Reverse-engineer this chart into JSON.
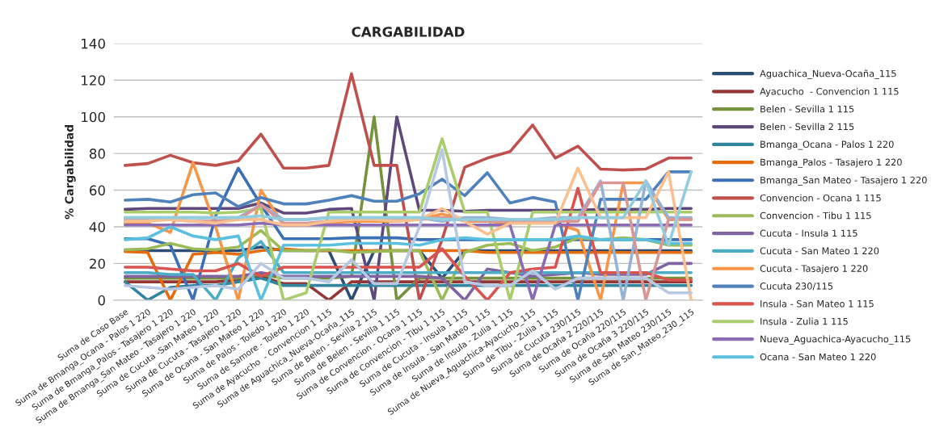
{
  "chart_data": {
    "type": "line",
    "title": "CARGABILIDAD",
    "ylabel": "% Cargabilidad",
    "categories": [
      "Suma de Caso Base",
      "Suma de Bmanga_Ocana - Palos 1 220",
      "Suma de Bmanga_Palos - Tasajero 1 220",
      "Suma de Bmanga_San Mateo - Tasajero 1 220",
      "Suma de Cucuta -San Mateo 1 220",
      "Suma de Cucuta - Tasajero 1 220",
      "Suma de Ocana - San Mateo 1 220",
      "Suma de Palos - Toledo 1 220",
      "Suma de Samore - Toledo 1 220",
      "Suma de Ayacucho  - Convencion 1 115",
      "Suma de Aguachica_Nueva-Ocaña_115",
      "Suma de Belen - Sevilla 2 115",
      "Suma de Belen - Sevilla 1 115",
      "Suma de Convencion - Ocana 1 115",
      "Suma de Convencion - Tibu 1 115",
      "Suma de Cucuta - Insula 1 115",
      "Suma de Insula - San Mateo 1 115",
      "Suma de Insula - Zulia 1 115",
      "Suma de Nueva_Aguachica-Ayacucho_115",
      "Suma de Tibu - Zulia 1 115",
      "Suma de Cucuta 230/115",
      "Suma de Ocaña 2 220/115",
      "Suma de Ocaña 220/115",
      "Suma de Ocaña 3 220/115",
      "Suma de San Mateo 230/115",
      "Suma de San_Mateo_230_115"
    ],
    "ylim": [
      0,
      140
    ],
    "yticks": [
      0,
      20,
      40,
      60,
      80,
      100,
      120,
      140
    ],
    "grid": "y",
    "legend": "right",
    "line_style": "solid",
    "marker": "none",
    "series": [
      {
        "name": "Aguachica_Nueva-Ocaña_115",
        "color": "#2c4d75",
        "values": [
          27,
          27,
          27,
          27,
          27,
          27,
          29,
          27,
          27,
          27,
          0,
          27,
          27,
          27,
          12,
          27,
          27,
          27,
          27,
          27,
          27,
          27,
          27,
          27,
          27,
          27
        ]
      },
      {
        "name": "Ayacucho  - Convencion 1 115",
        "color": "#943634",
        "values": [
          10,
          10,
          10,
          10,
          10,
          11,
          13,
          9,
          9,
          0,
          10,
          10,
          10,
          10,
          10,
          10,
          10,
          10,
          10,
          10,
          10,
          10,
          10,
          10,
          10,
          10
        ]
      },
      {
        "name": "Belen - Sevilla 1 115",
        "color": "#76923c",
        "values": [
          12,
          12,
          12,
          12,
          12,
          12,
          14,
          12,
          12,
          12,
          13,
          100,
          0,
          12,
          12,
          12,
          12,
          12,
          12,
          12,
          12,
          12,
          12,
          12,
          12,
          12
        ]
      },
      {
        "name": "Belen - Sevilla 2 115",
        "color": "#5f497a",
        "values": [
          49.5,
          50,
          50,
          50,
          50,
          50,
          53,
          47.5,
          47.5,
          49.5,
          50,
          0,
          100,
          49,
          49,
          48.5,
          49,
          49,
          49,
          49,
          49,
          49.5,
          49.5,
          49.5,
          50,
          50
        ]
      },
      {
        "name": "Bmanga_Ocana - Palos 1 220",
        "color": "#31859c",
        "values": [
          10,
          0,
          7,
          8,
          8,
          10,
          12,
          8,
          8,
          8,
          8,
          8,
          8,
          8,
          8,
          8,
          8,
          8,
          8,
          8,
          8,
          8,
          8,
          8,
          8,
          8
        ]
      },
      {
        "name": "Bmanga_Palos - Tasajero 1 220",
        "color": "#e46c0a",
        "values": [
          26.5,
          26,
          0,
          25,
          26,
          25,
          27,
          28,
          27,
          27,
          27,
          27,
          27,
          27,
          27,
          27,
          26,
          26,
          26,
          26,
          26,
          26,
          26,
          26,
          26,
          26
        ]
      },
      {
        "name": "Bmanga_San Mateo - Tasajero 1 220",
        "color": "#3b6fb6",
        "values": [
          33.5,
          33.5,
          30,
          0,
          46,
          72,
          52,
          33.5,
          33.5,
          33.5,
          34,
          34,
          34,
          33,
          33,
          33,
          33,
          33,
          33,
          33,
          33,
          33,
          33,
          33,
          33,
          33
        ]
      },
      {
        "name": "Convencion - Ocana 1 115",
        "color": "#c0504d",
        "values": [
          73.5,
          74.5,
          79,
          75,
          73.5,
          76,
          90.5,
          72,
          72,
          73.5,
          123.5,
          73.5,
          73.5,
          0,
          33,
          72.5,
          77.5,
          81,
          95.5,
          77.5,
          84,
          71.5,
          71,
          71.5,
          77.5,
          77.5
        ]
      },
      {
        "name": "Convencion - Tibu 1 115",
        "color": "#9bbb59",
        "values": [
          27.5,
          28,
          31,
          28,
          27.5,
          29,
          38,
          27,
          27,
          27.5,
          26,
          26.5,
          27,
          27,
          0,
          26,
          30,
          31,
          27,
          29,
          34,
          33,
          34,
          33,
          30,
          30
        ]
      },
      {
        "name": "Cucuta - Insula 1 115",
        "color": "#8064a2",
        "values": [
          13,
          13,
          13,
          13,
          13,
          13,
          15,
          13,
          13,
          13,
          13,
          13,
          13,
          13,
          12,
          0,
          17,
          15,
          13,
          14,
          15,
          14,
          14,
          14,
          20,
          20
        ]
      },
      {
        "name": "Cucuta - San Mateo 1 220",
        "color": "#4bacc6",
        "values": [
          15,
          15,
          14,
          14,
          0,
          23,
          32,
          15,
          15,
          15,
          15,
          15,
          15,
          15,
          15,
          15,
          15,
          15,
          15,
          15,
          15,
          15,
          15,
          15,
          15,
          15
        ]
      },
      {
        "name": "Cucuta - Tasajero 1 220",
        "color": "#f79646",
        "values": [
          42,
          42,
          37,
          75,
          40,
          0,
          60,
          41,
          41,
          42,
          43,
          43,
          43,
          44,
          47,
          43,
          43,
          42,
          42,
          42,
          38,
          0,
          64,
          64,
          44,
          44
        ]
      },
      {
        "name": "Cucuta 230/115",
        "color": "#4f81bd",
        "values": [
          54.5,
          55,
          53.5,
          57.5,
          58.5,
          51,
          56,
          52.5,
          52.5,
          54.5,
          57,
          54,
          54,
          58,
          66,
          57,
          69.5,
          53,
          56,
          53.5,
          0,
          55,
          55,
          55,
          70,
          70
        ]
      },
      {
        "name": "Insula - San Mateo 1 115",
        "color": "#d9534f",
        "values": [
          18,
          18,
          17,
          16,
          16,
          20,
          13,
          18,
          18,
          18,
          18,
          18,
          18,
          18,
          28,
          13,
          0,
          15,
          17,
          18,
          61,
          15,
          15,
          15,
          11,
          11
        ]
      },
      {
        "name": "Insula - Zulia 1 115",
        "color": "#a9cd6b",
        "values": [
          48,
          48,
          48,
          48,
          47.5,
          48,
          50,
          0,
          4,
          48,
          48,
          48,
          48,
          48,
          88,
          48,
          48,
          0,
          48,
          48,
          48,
          48,
          48,
          48,
          48,
          48
        ]
      },
      {
        "name": "Nueva_Aguachica-Ayacucho_115",
        "color": "#8b6bb5",
        "values": [
          41,
          41,
          41,
          41,
          41,
          41,
          42,
          41,
          41,
          41,
          41,
          41,
          41,
          41,
          41,
          41,
          41,
          41,
          0,
          41,
          41,
          41,
          41,
          41,
          41,
          41
        ]
      },
      {
        "name": "Ocana - San Mateo 1 220",
        "color": "#5bc0de",
        "values": [
          33,
          34,
          40,
          35,
          33,
          35,
          0,
          30,
          30,
          30,
          31,
          31,
          31,
          30,
          33,
          34,
          33,
          33,
          33,
          33,
          35,
          33,
          33,
          33,
          31,
          31
        ]
      },
      {
        "color": "#95b3d7",
        "values": [
          45,
          45,
          45,
          45,
          45,
          45,
          52,
          44,
          44,
          45,
          45,
          45,
          45,
          45,
          43,
          45,
          45,
          44,
          44,
          45,
          45,
          65,
          0,
          65,
          45,
          45
        ]
      },
      {
        "color": "#d99694",
        "values": [
          44,
          44,
          44,
          43,
          43,
          44,
          52,
          42,
          42,
          43,
          44,
          44,
          44,
          44,
          45,
          44,
          43,
          43,
          43,
          43,
          43,
          64,
          64,
          0,
          44,
          44
        ]
      },
      {
        "color": "#fac090",
        "values": [
          43,
          43,
          44,
          43,
          42,
          44,
          44,
          41,
          41,
          43,
          44,
          44,
          43,
          44,
          50,
          43,
          36,
          42,
          42,
          42,
          72,
          45,
          45,
          45,
          70,
          0
        ]
      },
      {
        "color": "#b7c9e2",
        "values": [
          8,
          7,
          6,
          7,
          8,
          6,
          20,
          12,
          12,
          10,
          22,
          9,
          9,
          40,
          82,
          10,
          8,
          8,
          16,
          6,
          12,
          12,
          12,
          12,
          4,
          4
        ]
      },
      {
        "color": "#93cddd",
        "values": [
          45,
          45,
          45,
          45,
          45,
          45,
          46,
          44,
          44,
          45,
          45,
          45,
          45,
          45,
          44,
          44,
          44,
          44,
          44,
          44,
          45,
          45,
          45,
          65,
          30,
          70
        ]
      }
    ]
  }
}
